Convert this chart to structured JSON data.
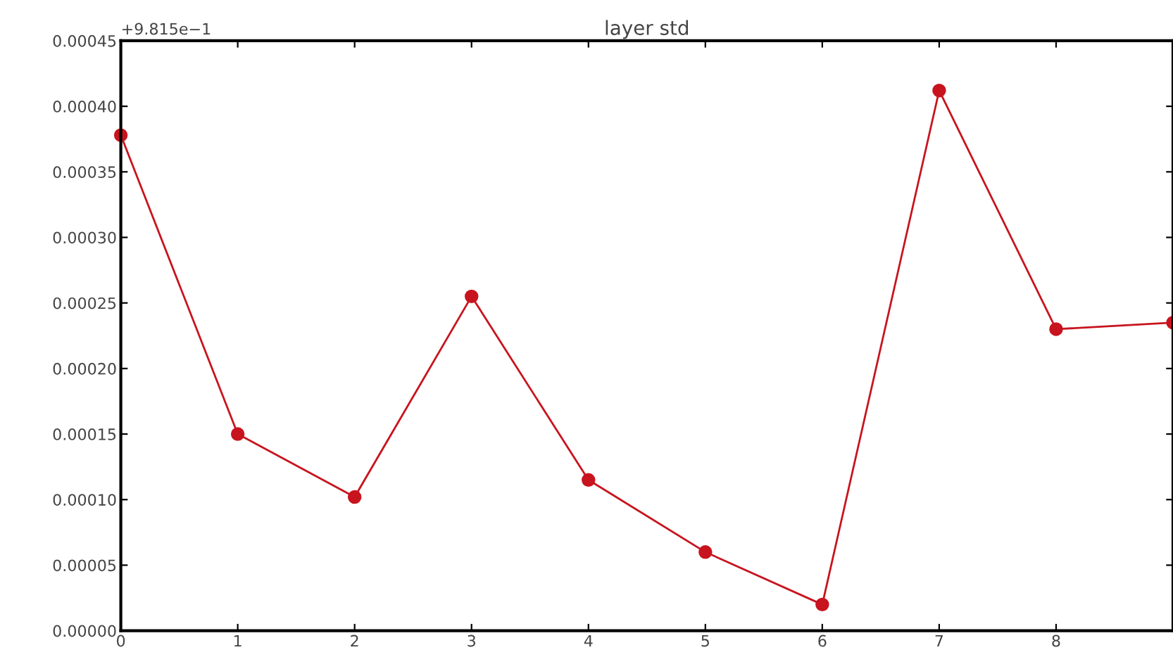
{
  "chart_data": {
    "type": "line",
    "title": "layer std",
    "x": [
      0,
      1,
      2,
      3,
      4,
      5,
      6,
      7,
      8,
      9
    ],
    "series": [
      {
        "color": "#c8141e",
        "values": [
          0.000378,
          0.00015,
          0.000102,
          0.000255,
          0.000115,
          6e-05,
          2e-05,
          0.000412,
          0.00023,
          0.000235
        ]
      }
    ],
    "xlim": [
      0,
      9
    ],
    "xticks": [
      0,
      1,
      2,
      3,
      4,
      5,
      6,
      7,
      8
    ],
    "ylim": [
      0,
      0.00045
    ],
    "yticks": [
      {
        "value": 0,
        "label": "0.00000"
      },
      {
        "value": 5e-05,
        "label": "0.00005"
      },
      {
        "value": 0.0001,
        "label": "0.00010"
      },
      {
        "value": 0.00015,
        "label": "0.00015"
      },
      {
        "value": 0.0002,
        "label": "0.00020"
      },
      {
        "value": 0.00025,
        "label": "0.00025"
      },
      {
        "value": 0.0003,
        "label": "0.00030"
      },
      {
        "value": 0.00035,
        "label": "0.00035"
      },
      {
        "value": 0.0004,
        "label": "0.00040"
      },
      {
        "value": 0.00045,
        "label": "0.00045"
      }
    ],
    "annotations": [
      "+9.815e−1"
    ],
    "marker": "circle",
    "line_style": "solid",
    "grid": false,
    "legend": false
  }
}
